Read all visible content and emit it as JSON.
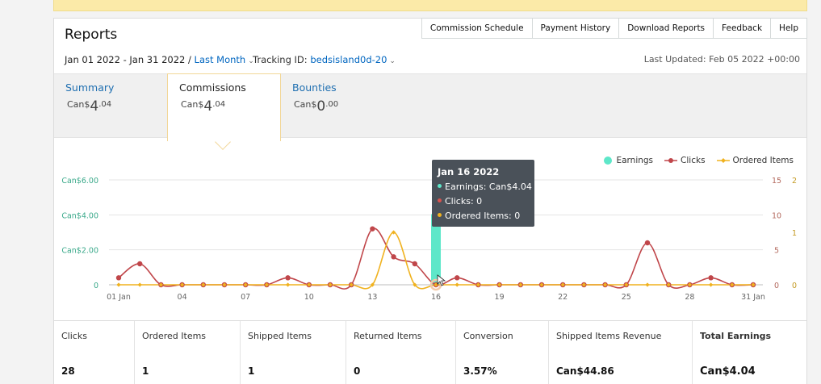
{
  "header": {
    "title": "Reports",
    "nav": [
      "Commission Schedule",
      "Payment History",
      "Download Reports",
      "Feedback",
      "Help"
    ]
  },
  "filters": {
    "date_range": "Jan 01 2022 - Jan 31 2022 /",
    "period": "Last Month",
    "tracking_label": "Tracking ID:",
    "tracking_id": "bedsisland0d-20",
    "last_updated": "Last Updated: Feb 05 2022 +00:00"
  },
  "tabs": [
    {
      "label": "Summary",
      "currency": "Can$",
      "whole": "4",
      "decimal": ".04"
    },
    {
      "label": "Commissions",
      "currency": "Can$",
      "whole": "4",
      "decimal": ".04"
    },
    {
      "label": "Bounties",
      "currency": "Can$",
      "whole": "0",
      "decimal": ".00"
    }
  ],
  "colors": {
    "earnings": "#5ee7c9",
    "clicks": "#c0464a",
    "ordered": "#f0b21f",
    "link": "#0066c0"
  },
  "chart_data": {
    "type": "line",
    "title": "",
    "x": [
      "01 Jan",
      "02",
      "03",
      "04",
      "05",
      "06",
      "07",
      "08",
      "09",
      "10",
      "11",
      "12",
      "13",
      "14",
      "15",
      "16",
      "17",
      "18",
      "19",
      "20",
      "21",
      "22",
      "23",
      "24",
      "25",
      "26",
      "27",
      "28",
      "29",
      "30",
      "31 Jan"
    ],
    "x_tick_labels": [
      "01 Jan",
      "04",
      "07",
      "10",
      "13",
      "16",
      "19",
      "22",
      "25",
      "28",
      "31 Jan"
    ],
    "y_left_ticks": [
      "0",
      "Can$2.00",
      "Can$4.00",
      "Can$6.00"
    ],
    "y_mid_ticks": [
      "0",
      "5",
      "10",
      "15"
    ],
    "y_right_ticks": [
      "0",
      "1",
      "2"
    ],
    "ylim_left": [
      0,
      6
    ],
    "ylim_clicks": [
      0,
      15
    ],
    "ylim_ordered": [
      0,
      2
    ],
    "grid": true,
    "legend_position": "top-right",
    "series": [
      {
        "name": "Earnings",
        "type": "bar",
        "values": [
          0,
          0,
          0,
          0,
          0,
          0,
          0,
          0,
          0,
          0,
          0,
          0,
          0,
          0,
          0,
          4.04,
          0,
          0,
          0,
          0,
          0,
          0,
          0,
          0,
          0,
          0,
          0,
          0,
          0,
          0,
          0
        ]
      },
      {
        "name": "Clicks",
        "type": "line",
        "values": [
          1,
          3,
          0,
          0,
          0,
          0,
          0,
          0,
          1,
          0,
          0,
          0,
          8,
          4,
          3,
          0,
          1,
          0,
          0,
          0,
          0,
          0,
          0,
          0,
          0,
          6,
          0,
          0,
          1,
          0,
          0
        ]
      },
      {
        "name": "Ordered Items",
        "type": "line",
        "values": [
          0,
          0,
          0,
          0,
          0,
          0,
          0,
          0,
          0,
          0,
          0,
          0,
          0,
          1,
          0,
          0,
          0,
          0,
          0,
          0,
          0,
          0,
          0,
          0,
          0,
          0,
          0,
          0,
          0,
          0,
          0
        ]
      }
    ]
  },
  "tooltip": {
    "date": "Jan 16 2022",
    "earnings": "Earnings: Can$4.04",
    "clicks": "Clicks: 0",
    "ordered": "Ordered Items: 0"
  },
  "stats": [
    {
      "label": "Clicks",
      "value": "28"
    },
    {
      "label": "Ordered Items",
      "value": "1"
    },
    {
      "label": "Shipped Items",
      "value": "1"
    },
    {
      "label": "Returned Items",
      "value": "0"
    },
    {
      "label": "Conversion",
      "value": "3.57%"
    },
    {
      "label": "Shipped Items Revenue",
      "value": "Can$44.86"
    },
    {
      "label": "Total Earnings",
      "value": "Can$4.04"
    }
  ]
}
